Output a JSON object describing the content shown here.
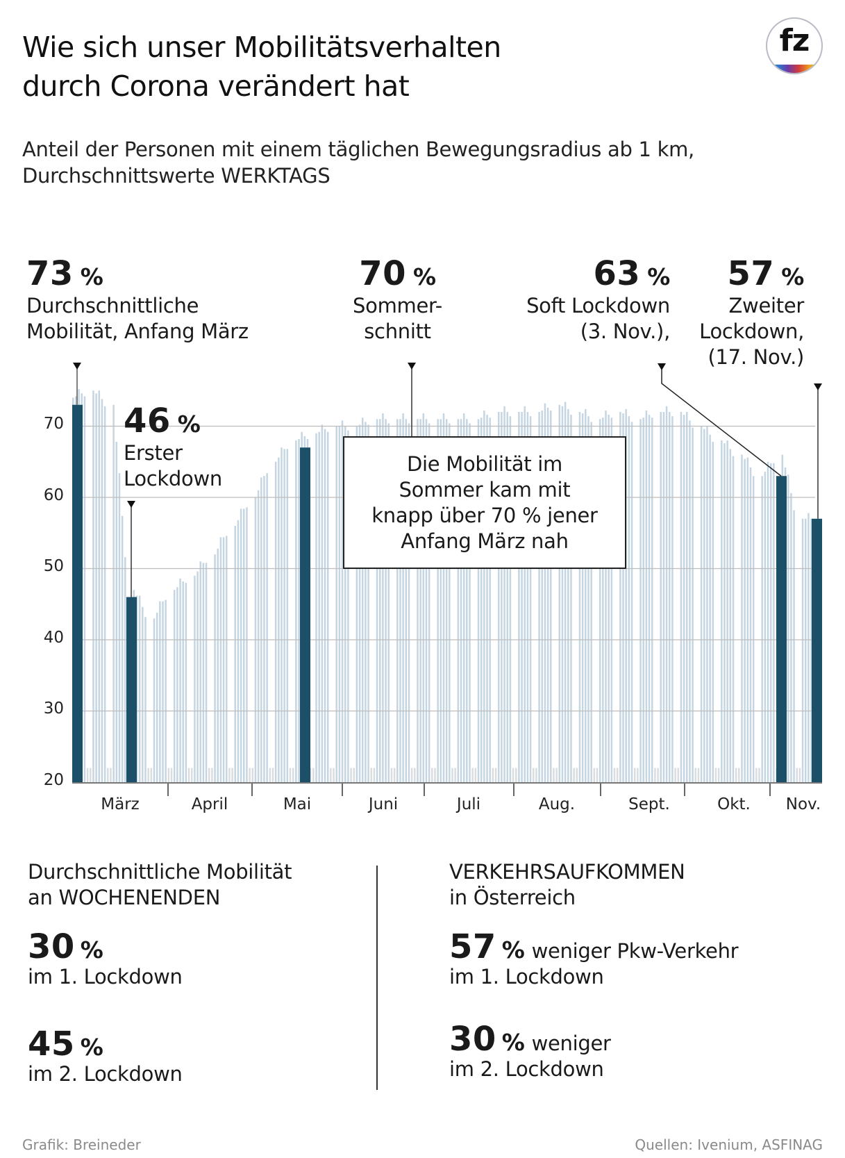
{
  "header": {
    "title_line1": "Wie sich unser Mobilitätsverhalten",
    "title_line2": "durch Corona verändert hat",
    "subtitle_line1": "Anteil der Personen mit einem täglichen Bewegungsradius ab 1 km,",
    "subtitle_line2": "Durchschnittswerte WERKTAGS",
    "logo_text": "fz"
  },
  "callouts": [
    {
      "value": "73",
      "unit": "%",
      "line1": "Durchschnittliche",
      "line2": "Mobilität, Anfang März",
      "line3": ""
    },
    {
      "value": "46",
      "unit": "%",
      "line1": "Erster",
      "line2": "Lockdown",
      "line3": ""
    },
    {
      "value": "70",
      "unit": "%",
      "line1": "Sommer-",
      "line2": "schnitt",
      "line3": ""
    },
    {
      "value": "63",
      "unit": "%",
      "line1": "Soft Lockdown",
      "line2": "(3. Nov.),",
      "line3": ""
    },
    {
      "value": "57",
      "unit": "%",
      "line1": "Zweiter",
      "line2": "Lockdown,",
      "line3": "(17. Nov.)"
    }
  ],
  "note_box": {
    "line1": "Die Mobilität im",
    "line2": "Sommer kam mit",
    "line3": "knapp über 70 % jener",
    "line4": "Anfang März nah"
  },
  "chart_data": {
    "type": "bar",
    "title": "Anteil der Personen mit einem täglichen Bewegungsradius ab 1 km, Durchschnittswerte WERKTAGS",
    "xlabel": "",
    "ylabel": "",
    "ylim": [
      20,
      80
    ],
    "yticks": [
      20,
      30,
      40,
      50,
      60,
      70
    ],
    "grid": true,
    "months": [
      "März",
      "April",
      "Mai",
      "Juni",
      "Juli",
      "Aug.",
      "Sept.",
      "Okt.",
      "Nov."
    ],
    "highlight_bars": [
      {
        "label": "Anfang März",
        "value": 73
      },
      {
        "label": "Erster Lockdown",
        "value": 46
      },
      {
        "label": "Anfang Mai",
        "value": 67
      },
      {
        "label": "Soft Lockdown (3. Nov.)",
        "value": 63
      },
      {
        "label": "Zweiter Lockdown (17. Nov.)",
        "value": 57
      }
    ],
    "weekly_weekday_values": [
      74,
      75,
      73,
      47,
      43,
      47,
      49,
      52,
      56,
      60,
      65,
      68,
      69,
      70,
      70,
      71,
      71,
      71,
      71,
      71,
      71,
      72,
      72,
      72,
      73,
      72,
      71,
      72,
      71,
      72,
      72,
      70,
      68,
      66,
      63,
      66,
      57
    ],
    "weekend_value": 22,
    "colors": {
      "highlight": "#1b5068",
      "daily": "#c5d6e2",
      "weekend": "#d9dde0",
      "grid": "#bdbdbd"
    }
  },
  "weekend_section": {
    "heading_line1": "Durchschnittliche Mobilität",
    "heading_line2": "an WOCHENENDEN",
    "stats": [
      {
        "value": "30",
        "unit": "%",
        "text": "",
        "line2": "im 1. Lockdown"
      },
      {
        "value": "45",
        "unit": "%",
        "text": "",
        "line2": "im 2. Lockdown"
      }
    ]
  },
  "traffic_section": {
    "heading_line1": "VERKEHRSAUFKOMMEN",
    "heading_line2": "in Österreich",
    "stats": [
      {
        "value": "57",
        "unit": "%",
        "text": "weniger Pkw-Verkehr",
        "line2": "im 1. Lockdown"
      },
      {
        "value": "30",
        "unit": "%",
        "text": "weniger",
        "line2": "im 2. Lockdown"
      }
    ]
  },
  "footer": {
    "credit": "Grafik: Breineder",
    "sources": "Quellen: Ivenium, ASFINAG"
  }
}
